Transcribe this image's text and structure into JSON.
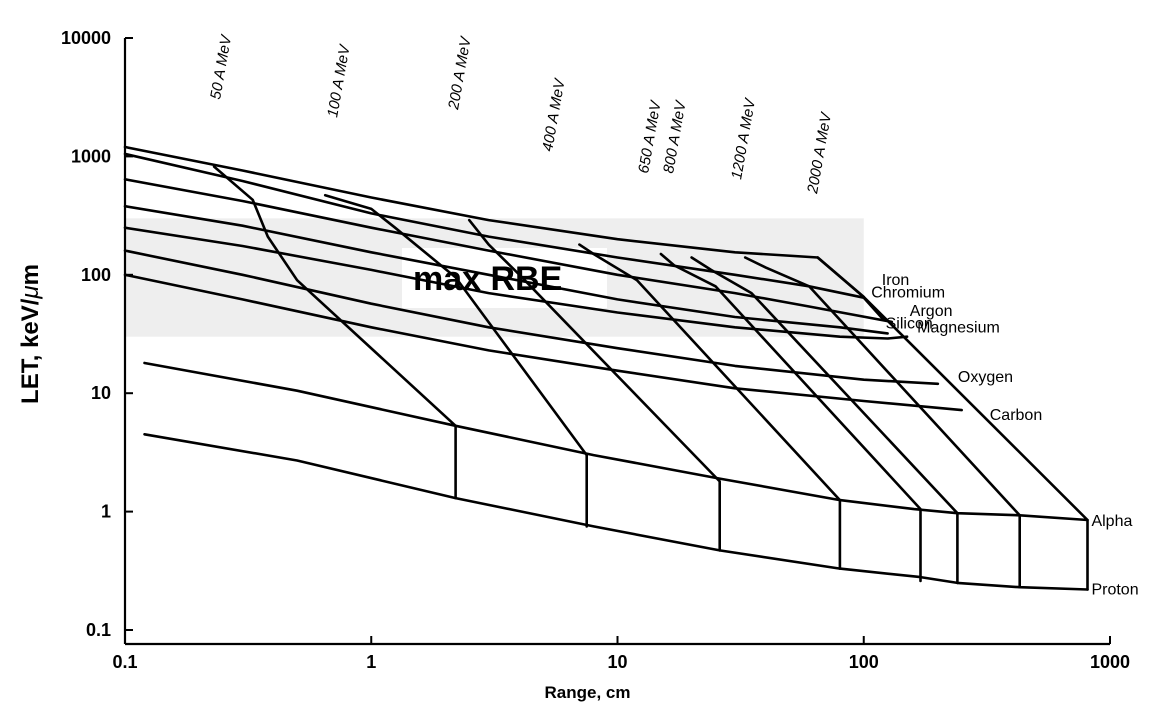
{
  "chart_data": {
    "type": "line",
    "xlabel": "Range, cm",
    "ylabel": "LET, keV/",
    "ylabel_mu": "μ",
    "ylabel_unit": "m",
    "x_scale": "log",
    "y_scale": "log",
    "xlim": [
      0.1,
      1000
    ],
    "ylim": [
      0.1,
      10000
    ],
    "x_ticks": [
      {
        "value": 0.1,
        "label": "0.1"
      },
      {
        "value": 1,
        "label": "1"
      },
      {
        "value": 10,
        "label": "10"
      },
      {
        "value": 100,
        "label": "100"
      },
      {
        "value": 1000,
        "label": "1000"
      }
    ],
    "y_ticks": [
      {
        "value": 0.1,
        "label": "0.1"
      },
      {
        "value": 1,
        "label": "1"
      },
      {
        "value": 10,
        "label": "10"
      },
      {
        "value": 100,
        "label": "100"
      },
      {
        "value": 1000,
        "label": "1000"
      },
      {
        "value": 10000,
        "label": "10000"
      }
    ],
    "grid": false,
    "shaded_band": {
      "y_range": [
        30,
        300
      ],
      "label": "max RBE",
      "color": "#eeeeee"
    },
    "series": [
      {
        "name": "Iron",
        "points": [
          [
            0.1,
            1200
          ],
          [
            0.3,
            760
          ],
          [
            1,
            450
          ],
          [
            3,
            290
          ],
          [
            10,
            200
          ],
          [
            30,
            155
          ],
          [
            65,
            140
          ],
          [
            100,
            65
          ]
        ]
      },
      {
        "name": "Chromium",
        "points": [
          [
            0.1,
            1050
          ],
          [
            0.3,
            620
          ],
          [
            1,
            330
          ],
          [
            3,
            210
          ],
          [
            10,
            140
          ],
          [
            30,
            100
          ],
          [
            60,
            80
          ],
          [
            100,
            64
          ],
          [
            120,
            42
          ]
        ]
      },
      {
        "name": "Argon",
        "points": [
          [
            0.1,
            640
          ],
          [
            0.3,
            420
          ],
          [
            1,
            250
          ],
          [
            3,
            160
          ],
          [
            10,
            100
          ],
          [
            30,
            70
          ],
          [
            60,
            54
          ],
          [
            130,
            40
          ]
        ]
      },
      {
        "name": "Silicon",
        "points": [
          [
            0.1,
            380
          ],
          [
            0.3,
            260
          ],
          [
            1,
            155
          ],
          [
            3,
            100
          ],
          [
            10,
            62
          ],
          [
            30,
            44
          ],
          [
            80,
            36
          ],
          [
            125,
            32
          ]
        ]
      },
      {
        "name": "Magnesium",
        "points": [
          [
            0.1,
            250
          ],
          [
            0.3,
            175
          ],
          [
            1,
            110
          ],
          [
            3,
            70
          ],
          [
            10,
            48
          ],
          [
            30,
            36
          ],
          [
            80,
            30
          ],
          [
            125,
            29
          ],
          [
            150,
            30
          ]
        ]
      },
      {
        "name": "Oxygen",
        "points": [
          [
            0.1,
            160
          ],
          [
            0.3,
            100
          ],
          [
            1,
            57
          ],
          [
            3,
            36
          ],
          [
            10,
            24
          ],
          [
            30,
            17
          ],
          [
            100,
            13
          ],
          [
            200,
            12
          ]
        ]
      },
      {
        "name": "Carbon",
        "points": [
          [
            0.1,
            100
          ],
          [
            0.3,
            62
          ],
          [
            1,
            36
          ],
          [
            3,
            23
          ],
          [
            10,
            15.5
          ],
          [
            30,
            11
          ],
          [
            100,
            8.6
          ],
          [
            250,
            7.2
          ]
        ]
      },
      {
        "name": "Alpha",
        "points": [
          [
            0.12,
            18
          ],
          [
            0.5,
            10.5
          ],
          [
            2.2,
            5.3
          ],
          [
            8,
            3.0
          ],
          [
            26,
            1.9
          ],
          [
            80,
            1.25
          ],
          [
            160,
            1.05
          ],
          [
            240,
            0.97
          ],
          [
            430,
            0.93
          ],
          [
            810,
            0.85
          ]
        ]
      },
      {
        "name": "Proton",
        "points": [
          [
            0.12,
            4.5
          ],
          [
            0.5,
            2.7
          ],
          [
            2.2,
            1.3
          ],
          [
            8,
            0.75
          ],
          [
            26,
            0.47
          ],
          [
            80,
            0.33
          ],
          [
            170,
            0.28
          ],
          [
            240,
            0.25
          ],
          [
            430,
            0.23
          ],
          [
            810,
            0.22
          ]
        ]
      }
    ],
    "energy_lines": [
      {
        "label": "50 A MeV",
        "points": [
          [
            0.23,
            820
          ],
          [
            0.33,
            430
          ],
          [
            0.38,
            210
          ],
          [
            0.5,
            90
          ],
          [
            2.2,
            5.3
          ],
          [
            2.2,
            1.3
          ]
        ]
      },
      {
        "label": "100 A MeV",
        "points": [
          [
            0.65,
            470
          ],
          [
            1,
            360
          ],
          [
            1.25,
            250
          ],
          [
            2.2,
            95
          ],
          [
            7.5,
            3.0
          ],
          [
            7.5,
            0.75
          ]
        ]
      },
      {
        "label": "200 A MeV",
        "points": [
          [
            2.5,
            290
          ],
          [
            3,
            180
          ],
          [
            4,
            100
          ],
          [
            26,
            1.8
          ],
          [
            26,
            0.47
          ]
        ]
      },
      {
        "label": "400 A MeV",
        "points": [
          [
            7,
            180
          ],
          [
            8,
            150
          ],
          [
            12,
            90
          ],
          [
            80,
            1.25
          ],
          [
            80,
            0.33
          ]
        ]
      },
      {
        "label": "650 A MeV",
        "points": [
          [
            15,
            150
          ],
          [
            17,
            120
          ],
          [
            25,
            80
          ],
          [
            170,
            1.05
          ],
          [
            170,
            0.26
          ]
        ]
      },
      {
        "label": "800 A MeV",
        "points": [
          [
            20,
            140
          ],
          [
            24,
            110
          ],
          [
            35,
            70
          ],
          [
            240,
            0.97
          ],
          [
            240,
            0.25
          ]
        ]
      },
      {
        "label": "1200 A MeV",
        "points": [
          [
            33,
            140
          ],
          [
            40,
            115
          ],
          [
            60,
            80
          ],
          [
            430,
            0.93
          ],
          [
            430,
            0.23
          ]
        ]
      },
      {
        "label": "2000 A MeV",
        "points": [
          [
            65,
            140
          ],
          [
            100,
            65
          ],
          [
            810,
            0.85
          ],
          [
            810,
            0.22
          ]
        ]
      }
    ]
  }
}
